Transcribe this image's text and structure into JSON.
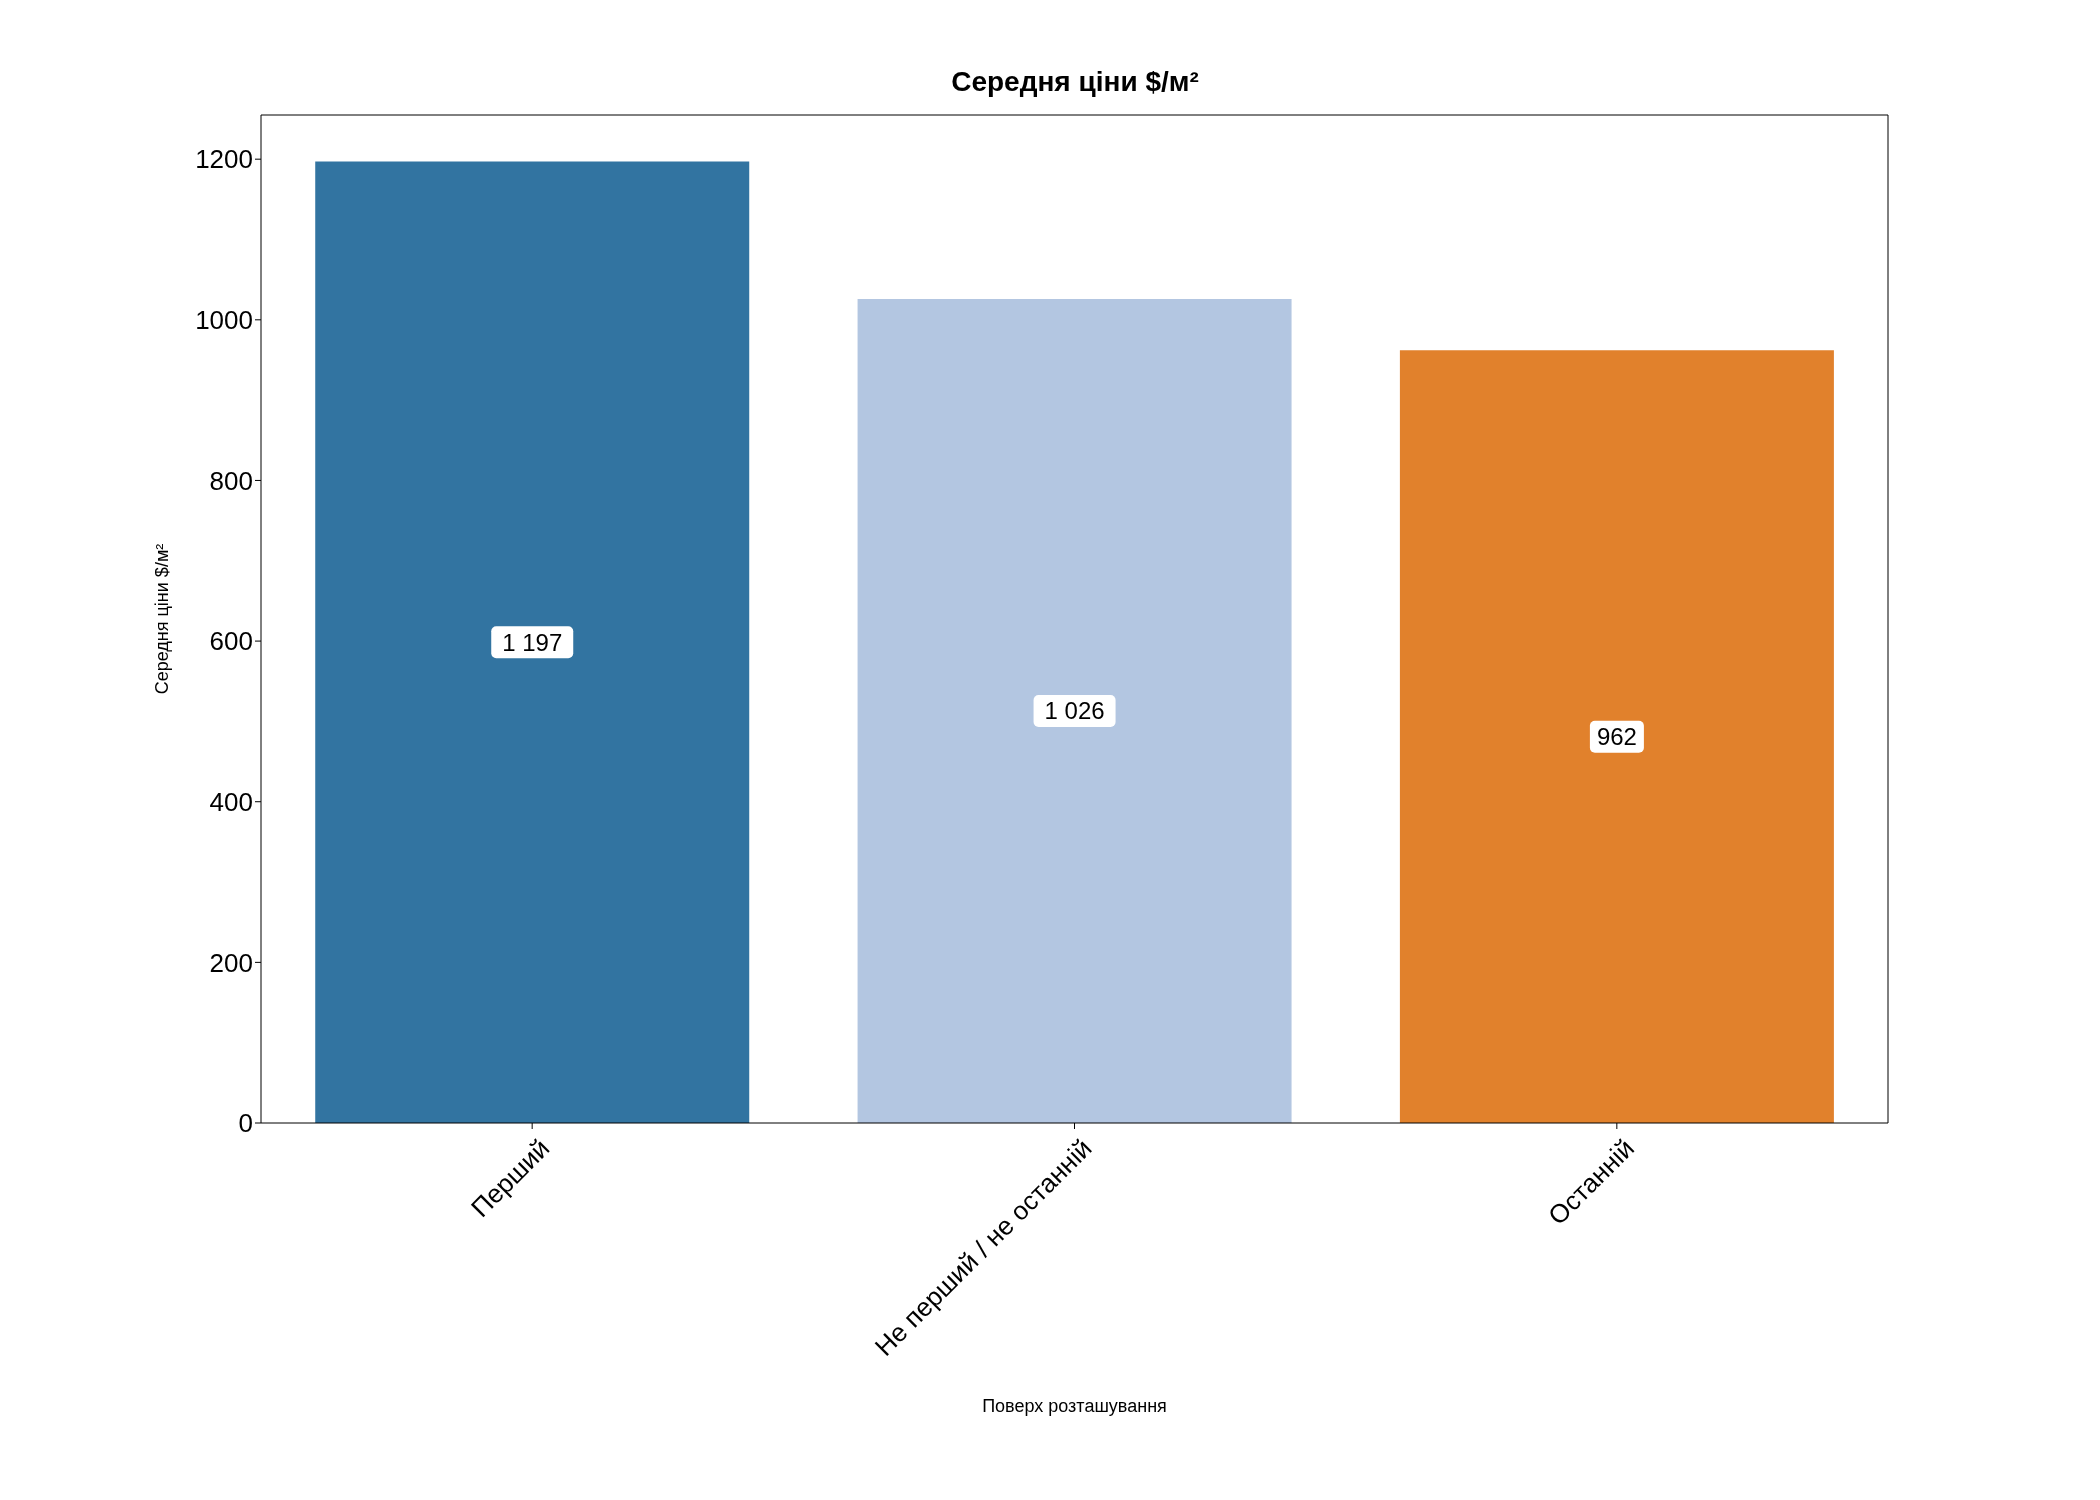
{
  "chart_data": {
    "type": "bar",
    "title": "Середня ціни $/м²",
    "xlabel": "Поверх розташування",
    "ylabel": "Середня ціни $/м²",
    "categories": [
      "Перший",
      "Не перший / не останній",
      "Останній"
    ],
    "values": [
      1197,
      1026,
      962
    ],
    "colors": [
      "#3274a1",
      "#b3c6e1",
      "#e1812c"
    ],
    "value_labels": [
      "1 197",
      "1 026",
      "962"
    ],
    "ylim": [
      0,
      1255
    ],
    "yticks": [
      0,
      200,
      400,
      600,
      800,
      1000,
      1200
    ]
  }
}
